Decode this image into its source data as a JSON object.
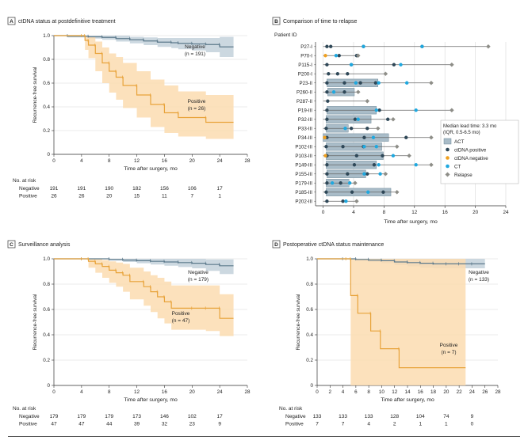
{
  "colors": {
    "negative": "#5d7a8c",
    "negative_band": "#c3d1da",
    "positive": "#e8a33a",
    "positive_band": "#fbdcb0",
    "act_box": "#a9bcc8",
    "dot_pos": "#2f4858",
    "dot_neg": "#f0a020",
    "dot_ct": "#1fa8df",
    "dot_relapse": "#8e8e88",
    "grid": "#d8d8d8"
  },
  "chart_data": [
    {
      "panel_letter": "A",
      "title": "ctDNA status at postdefinitive treatment",
      "type": "line",
      "xlabel": "Time after surgery, mo",
      "ylabel": "Recurrence-free survival",
      "xlim": [
        0,
        28
      ],
      "ylim": [
        0,
        1.0
      ],
      "xticks": [
        "0",
        "4",
        "8",
        "12",
        "16",
        "20",
        "24",
        "28"
      ],
      "yticks": [
        "0",
        "0.2",
        "0.4",
        "0.6",
        "0.8",
        "1.0"
      ],
      "series": [
        {
          "name": "Negative",
          "n_label": "(n = 191)",
          "x": [
            0,
            2,
            5,
            7,
            9,
            11,
            13,
            15,
            17,
            18,
            20,
            22,
            24,
            26
          ],
          "y": [
            1.0,
            0.995,
            0.99,
            0.985,
            0.975,
            0.965,
            0.955,
            0.945,
            0.94,
            0.935,
            0.93,
            0.925,
            0.905,
            0.905
          ],
          "lo": [
            1.0,
            0.985,
            0.975,
            0.965,
            0.95,
            0.935,
            0.92,
            0.905,
            0.895,
            0.885,
            0.875,
            0.86,
            0.82,
            0.82
          ],
          "hi": [
            1.0,
            1.0,
            1.0,
            1.0,
            1.0,
            0.99,
            0.985,
            0.98,
            0.98,
            0.98,
            0.98,
            0.98,
            0.99,
            0.99
          ]
        },
        {
          "name": "Positive",
          "n_label": "(n = 26)",
          "x": [
            0,
            4,
            4.5,
            5,
            6,
            7,
            8,
            9,
            10,
            12,
            14,
            16,
            18,
            22,
            26
          ],
          "y": [
            1.0,
            1.0,
            0.96,
            0.92,
            0.85,
            0.77,
            0.7,
            0.65,
            0.58,
            0.5,
            0.42,
            0.35,
            0.31,
            0.27,
            0.27
          ],
          "lo": [
            1.0,
            1.0,
            0.88,
            0.81,
            0.7,
            0.6,
            0.52,
            0.46,
            0.39,
            0.31,
            0.23,
            0.18,
            0.15,
            0.13,
            0.13
          ],
          "hi": [
            1.0,
            1.0,
            1.0,
            0.99,
            0.95,
            0.9,
            0.85,
            0.82,
            0.77,
            0.7,
            0.63,
            0.58,
            0.53,
            0.5,
            0.5
          ]
        }
      ],
      "risk_table": {
        "title": "No. at risk",
        "rows": [
          {
            "label": "Negative",
            "values": [
              "191",
              "191",
              "190",
              "182",
              "156",
              "106",
              "17"
            ]
          },
          {
            "label": "Positive",
            "values": [
              "26",
              "26",
              "20",
              "15",
              "11",
              "7",
              "1"
            ]
          }
        ]
      }
    },
    {
      "panel_letter": "B",
      "title": "Comparison of time to relapse",
      "type": "scatter",
      "xlabel": "Time after surgery, mo",
      "ylabel_header": "Patient ID",
      "xlim": [
        -1,
        24
      ],
      "xticks": [
        "0",
        "4",
        "8",
        "12",
        "16",
        "20",
        "24"
      ],
      "patients": [
        "P27-I",
        "P70-I",
        "P115-I",
        "P200-I",
        "P23-II",
        "P260-II",
        "P287-II",
        "P19-III",
        "P32-III",
        "P33-III",
        "P34-III",
        "P102-III",
        "P103-III",
        "P149-III",
        "P155-III",
        "P179-III",
        "P185-III",
        "P202-III"
      ],
      "act": [
        null,
        null,
        null,
        null,
        [
          0.5,
          7.2
        ],
        [
          0.6,
          4.1
        ],
        null,
        [
          0.5,
          7.0
        ],
        [
          0.4,
          6.3
        ],
        [
          0.4,
          3.3
        ],
        [
          0,
          8.6
        ],
        [
          0.4,
          7.7
        ],
        [
          0.4,
          7.9
        ],
        [
          0.4,
          7.0
        ],
        [
          0.5,
          5.6
        ],
        [
          0.4,
          3.4
        ],
        [
          0.4,
          8.9
        ],
        null
      ],
      "relapse": [
        21.7,
        4.6,
        16.9,
        8.2,
        14.2,
        4.6,
        5.8,
        16.9,
        9.2,
        7.2,
        14.2,
        9.7,
        11.3,
        14.2,
        8.2,
        4.2,
        9.7,
        4.4
      ],
      "ctdna_pos_times": [
        [
          0.5,
          1.0,
          5.3,
          13.0
        ],
        [
          2.1,
          4.4
        ],
        [
          0.5,
          3.7,
          9.3
        ],
        [
          0.7,
          1.9,
          3.2
        ],
        [
          0.5,
          2.8,
          4.9,
          6.9
        ],
        [
          0.5,
          2.8
        ],
        [
          0.6
        ],
        [
          0.5,
          7.4
        ],
        [
          0.5,
          4.2,
          8.5
        ],
        [
          0.4,
          3.7,
          5.8
        ],
        [
          0.5,
          5.4,
          10.9
        ],
        [
          0.4,
          2.6,
          5.3
        ],
        [
          0.5,
          4.4,
          7.8
        ],
        [
          0.5,
          4.1,
          6.7
        ],
        [
          0.5,
          3.2,
          5.8
        ],
        [
          0.5,
          2.3
        ],
        [
          0.4,
          3.8,
          7.9
        ],
        [
          0.5,
          2.6
        ]
      ],
      "ctdna_neg_times": [
        [],
        [
          0.3
        ],
        [],
        [],
        [],
        [],
        [],
        [],
        [],
        [],
        [
          0.2
        ],
        [],
        [
          0.3
        ],
        [],
        [],
        [],
        [],
        []
      ],
      "ct_times": [
        [
          5.3,
          13.0
        ],
        [
          1.7
        ],
        [
          3.7,
          10.2
        ],
        [],
        [
          4.3,
          7.3,
          11.0
        ],
        [
          1.4
        ],
        [],
        [
          7.0,
          12.2
        ],
        [
          4.6
        ],
        [
          2.9
        ],
        [
          6.6
        ],
        [
          5.4,
          7.0
        ],
        [
          9.2
        ],
        [
          7.3,
          12.2
        ],
        [
          5.4,
          7.5
        ],
        [
          1.2,
          3.5
        ],
        [
          5.9
        ],
        [
          3.0
        ]
      ],
      "legend_note": [
        "Median lead time: 3.3 mo",
        "(IQR, 0.5-6.5 mo)"
      ],
      "legend": [
        "ACT",
        "ctDNA positive",
        "ctDNA negative",
        "CT",
        "Relapse"
      ]
    },
    {
      "panel_letter": "C",
      "title": "Surveillance analysis",
      "type": "line",
      "xlabel": "Time after surgery, mo",
      "ylabel": "Recurrence-free survival",
      "xlim": [
        0,
        28
      ],
      "ylim": [
        0,
        1.0
      ],
      "xticks": [
        "0",
        "4",
        "8",
        "12",
        "16",
        "20",
        "24",
        "28"
      ],
      "yticks": [
        "0",
        "0.2",
        "0.4",
        "0.6",
        "0.8",
        "1.0"
      ],
      "series": [
        {
          "name": "Negative",
          "n_label": "(n = 179)",
          "x": [
            0,
            4,
            8,
            10,
            12,
            14,
            16,
            18,
            20,
            22,
            24,
            26
          ],
          "y": [
            1.0,
            1.0,
            0.995,
            0.99,
            0.985,
            0.98,
            0.975,
            0.97,
            0.965,
            0.955,
            0.945,
            0.945
          ],
          "lo": [
            1.0,
            1.0,
            0.985,
            0.975,
            0.965,
            0.955,
            0.945,
            0.935,
            0.925,
            0.905,
            0.88,
            0.88
          ],
          "hi": [
            1.0,
            1.0,
            1.0,
            1.0,
            1.0,
            1.0,
            1.0,
            1.0,
            1.0,
            0.995,
            0.995,
            0.995
          ]
        },
        {
          "name": "Positive",
          "n_label": "(n = 47)",
          "x": [
            0,
            4,
            5,
            6,
            7,
            8,
            9,
            10,
            11,
            13,
            14,
            15,
            16,
            17,
            20,
            22,
            24,
            26
          ],
          "y": [
            1.0,
            1.0,
            0.98,
            0.96,
            0.94,
            0.91,
            0.89,
            0.87,
            0.82,
            0.78,
            0.74,
            0.7,
            0.66,
            0.61,
            0.61,
            0.61,
            0.53,
            0.53
          ],
          "lo": [
            1.0,
            1.0,
            0.93,
            0.89,
            0.85,
            0.81,
            0.78,
            0.74,
            0.68,
            0.63,
            0.58,
            0.53,
            0.49,
            0.44,
            0.44,
            0.43,
            0.39,
            0.39
          ],
          "hi": [
            1.0,
            1.0,
            1.0,
            1.0,
            0.99,
            0.98,
            0.97,
            0.96,
            0.93,
            0.9,
            0.87,
            0.85,
            0.82,
            0.79,
            0.79,
            0.79,
            0.72,
            0.72
          ]
        }
      ],
      "risk_table": {
        "title": "No. at risk",
        "rows": [
          {
            "label": "Negative",
            "values": [
              "179",
              "179",
              "179",
              "173",
              "146",
              "102",
              "17"
            ]
          },
          {
            "label": "Positive",
            "values": [
              "47",
              "47",
              "44",
              "39",
              "32",
              "23",
              "9"
            ]
          }
        ]
      }
    },
    {
      "panel_letter": "D",
      "title": "Postoperative ctDNA status maintenance",
      "type": "line",
      "xlabel": "Time after surgery, mo",
      "ylabel": "Recurrence-free survival",
      "xlim": [
        0,
        28
      ],
      "ylim": [
        0,
        1.0
      ],
      "xticks": [
        "0",
        "2",
        "4",
        "6",
        "8",
        "10",
        "12",
        "14",
        "16",
        "18",
        "20",
        "22",
        "24",
        "26",
        "28"
      ],
      "yticks": [
        "0",
        "0.2",
        "0.4",
        "0.6",
        "0.8",
        "1.0"
      ],
      "series": [
        {
          "name": "Negative",
          "n_label": "(n = 133)",
          "x": [
            0,
            4,
            6,
            8,
            10,
            12,
            14,
            16,
            18,
            20,
            22,
            24,
            26
          ],
          "y": [
            1.0,
            1.0,
            0.995,
            0.99,
            0.985,
            0.975,
            0.97,
            0.965,
            0.96,
            0.96,
            0.96,
            0.96,
            0.96
          ],
          "lo": [
            1.0,
            1.0,
            0.985,
            0.975,
            0.965,
            0.95,
            0.94,
            0.93,
            0.925,
            0.925,
            0.925,
            0.925,
            0.925
          ],
          "hi": [
            1.0,
            1.0,
            1.0,
            1.0,
            1.0,
            1.0,
            1.0,
            1.0,
            1.0,
            1.0,
            1.0,
            1.0,
            1.0
          ]
        },
        {
          "name": "Positive",
          "n_label": "(n = 7)",
          "x": [
            0,
            4.5,
            5.2,
            6.3,
            8.3,
            9.8,
            12.7,
            23
          ],
          "y": [
            1.0,
            1.0,
            0.71,
            0.57,
            0.43,
            0.29,
            0.14,
            0.14
          ],
          "lo": [
            1.0,
            1.0,
            0.0,
            0.0,
            0.0,
            0.0,
            0.0,
            0.0
          ],
          "hi": [
            1.0,
            1.0,
            1.0,
            1.0,
            1.0,
            1.0,
            1.0,
            1.0
          ]
        }
      ],
      "risk_table": {
        "title": "No. at risk",
        "rows": [
          {
            "label": "Negative",
            "values": [
              "133",
              "133",
              "133",
              "128",
              "104",
              "74",
              "9"
            ]
          },
          {
            "label": "Positive",
            "values": [
              "7",
              "7",
              "4",
              "2",
              "1",
              "1",
              "0"
            ]
          }
        ]
      }
    }
  ]
}
